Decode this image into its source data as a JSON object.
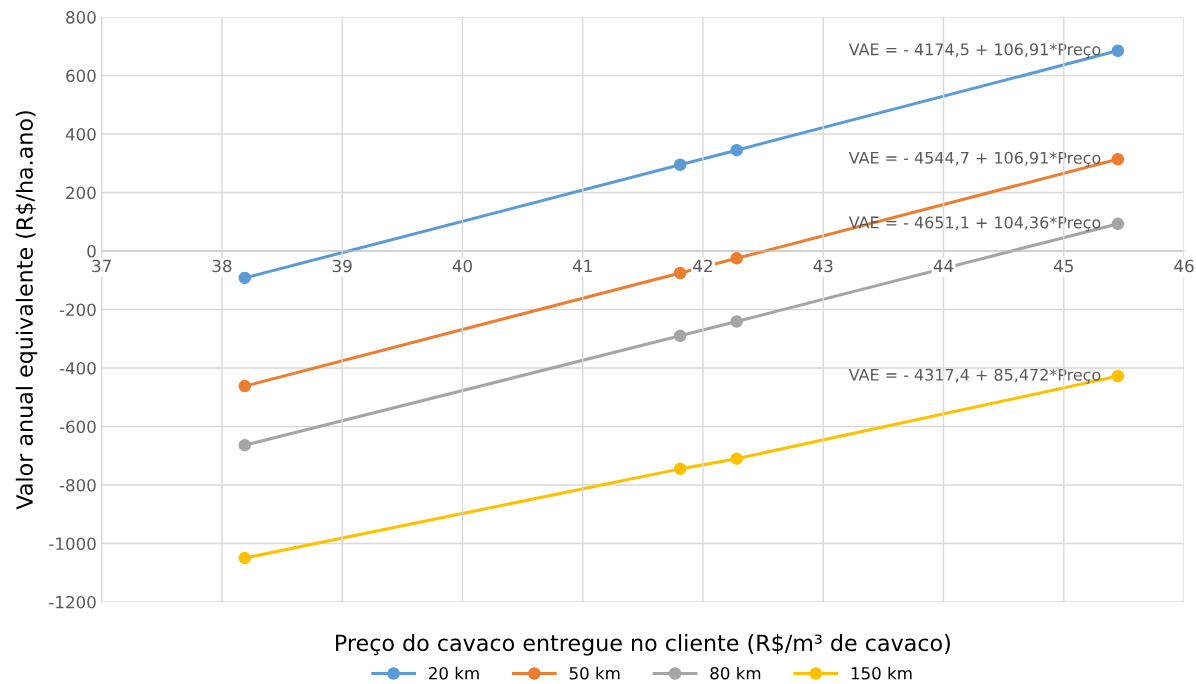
{
  "chart_data": {
    "type": "line",
    "xlabel": "Preço do cavaco entregue no cliente (R$/m³ de cavaco)",
    "ylabel": "Valor anual equivalente (R$/ha.ano)",
    "x": [
      38.19,
      41.81,
      42.28,
      45.45
    ],
    "series": [
      {
        "name": "20 km",
        "color": "#5b9bd5",
        "values": [
          -92,
          295,
          345,
          685
        ]
      },
      {
        "name": "50 km",
        "color": "#ed7d31",
        "values": [
          -462,
          -75,
          -25,
          314
        ]
      },
      {
        "name": "80 km",
        "color": "#a5a5a5",
        "values": [
          -664,
          -290,
          -241,
          93
        ]
      },
      {
        "name": "150 km",
        "color": "#ffc000",
        "values": [
          -1050,
          -745,
          -710,
          -428
        ]
      }
    ],
    "annotations": [
      "VAE = - 4174,5 + 106,91*Preço",
      "VAE = - 4544,7 + 106,91*Preço",
      "VAE = - 4651,1 + 104,36*Preço",
      "VAE = - 4317,4 + 85,472*Preço"
    ],
    "xlim": [
      37,
      46
    ],
    "xticks": [
      37,
      38,
      39,
      40,
      41,
      42,
      43,
      44,
      45,
      46
    ],
    "ylim": [
      -1200,
      800
    ],
    "yticks": [
      -1200,
      -1000,
      -800,
      -600,
      -400,
      -200,
      0,
      200,
      400,
      600,
      800
    ],
    "grid": true,
    "legend": "bottom",
    "marker": "circle",
    "line_style": "solid"
  }
}
